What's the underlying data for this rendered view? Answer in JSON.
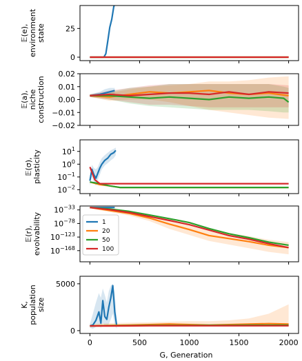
{
  "chart_data": {
    "type": "line",
    "layout": "5 vertically stacked panels sharing the x axis",
    "xlabel": "G, Generation",
    "x_ticks": [
      0,
      500,
      1000,
      1500,
      2000
    ],
    "xlim": [
      -100,
      2100
    ],
    "legend": {
      "placement": "inside panel 4, upper-left",
      "entries": [
        {
          "name": "1",
          "color": "#1f77b4"
        },
        {
          "name": "20",
          "color": "#ff7f0e"
        },
        {
          "name": "50",
          "color": "#2ca02c"
        },
        {
          "name": "100",
          "color": "#d62728"
        }
      ]
    },
    "panels": [
      {
        "id": "environment",
        "ylabel": [
          "𝔼(e),",
          "environment",
          "state"
        ],
        "yscale": "linear",
        "ylim": [
          -3,
          45
        ],
        "y_ticks": [
          {
            "v": 0,
            "label": "0"
          },
          {
            "v": 25,
            "label": "25"
          }
        ],
        "series": [
          {
            "name": "1",
            "color": "#1f77b4",
            "x": [
              0,
              50,
              100,
              140,
              160,
              180,
              200,
              220,
              240,
              260
            ],
            "y": [
              0,
              0,
              0,
              0,
              3,
              14,
              26,
              33,
              44,
              48
            ]
          },
          {
            "name": "20",
            "color": "#ff7f0e",
            "x": [
              0,
              2000
            ],
            "y": [
              0,
              0
            ]
          },
          {
            "name": "50",
            "color": "#2ca02c",
            "x": [
              0,
              2000
            ],
            "y": [
              0,
              0
            ]
          },
          {
            "name": "100",
            "color": "#d62728",
            "x": [
              0,
              2000
            ],
            "y": [
              0,
              0
            ]
          }
        ]
      },
      {
        "id": "niche",
        "ylabel": [
          "𝔼(a),",
          "niche",
          "construction"
        ],
        "yscale": "linear",
        "ylim": [
          -0.02,
          0.02
        ],
        "y_ticks": [
          {
            "v": 0.02,
            "label": "0.02"
          },
          {
            "v": 0.01,
            "label": "0.01"
          },
          {
            "v": 0.0,
            "label": "0.00"
          },
          {
            "v": -0.01,
            "label": "−0.01"
          },
          {
            "v": -0.02,
            "label": "−0.02"
          }
        ],
        "series": [
          {
            "name": "1",
            "color": "#1f77b4",
            "x": [
              0,
              100,
              150,
              200,
              250
            ],
            "y": [
              0.003,
              0.004,
              0.005,
              0.006,
              0.007
            ],
            "band_hi": [
              0.004,
              0.006,
              0.008,
              0.009,
              0.009
            ],
            "band_lo": [
              0.002,
              0.002,
              0.002,
              0.003,
              0.004
            ]
          },
          {
            "name": "20",
            "color": "#ff7f0e",
            "x": [
              0,
              200,
              400,
              600,
              800,
              1000,
              1200,
              1400,
              1600,
              1800,
              2000
            ],
            "y": [
              0.003,
              0.002,
              0.004,
              0.006,
              0.005,
              0.006,
              0.007,
              0.005,
              0.004,
              0.005,
              0.003
            ],
            "band_hi": [
              0.004,
              0.005,
              0.008,
              0.01,
              0.011,
              0.012,
              0.014,
              0.014,
              0.015,
              0.017,
              0.018
            ],
            "band_lo": [
              0.002,
              -0.001,
              0.0,
              0.0,
              -0.002,
              -0.005,
              -0.008,
              -0.01,
              -0.012,
              -0.014,
              -0.015
            ]
          },
          {
            "name": "50",
            "color": "#2ca02c",
            "x": [
              0,
              200,
              400,
              600,
              800,
              1000,
              1200,
              1400,
              1600,
              1800,
              1950,
              2000
            ],
            "y": [
              0.003,
              0.003,
              0.002,
              0.001,
              0.002,
              0.001,
              0.0,
              0.002,
              0.001,
              0.002,
              0.001,
              -0.002
            ],
            "band_hi": [
              0.004,
              0.006,
              0.009,
              0.01,
              0.012,
              0.012,
              0.012,
              0.012,
              0.012,
              0.012,
              0.01,
              0.009
            ],
            "band_lo": [
              0.002,
              0.0,
              -0.003,
              -0.005,
              -0.006,
              -0.007,
              -0.008,
              -0.008,
              -0.008,
              -0.009,
              -0.01,
              -0.01
            ]
          },
          {
            "name": "100",
            "color": "#d62728",
            "x": [
              0,
              200,
              400,
              600,
              800,
              1000,
              1200,
              1400,
              1600,
              1800,
              2000
            ],
            "y": [
              0.003,
              0.004,
              0.003,
              0.004,
              0.005,
              0.005,
              0.004,
              0.006,
              0.004,
              0.006,
              0.005
            ],
            "band_hi": [
              0.004,
              0.007,
              0.009,
              0.011,
              0.012,
              0.012,
              0.012,
              0.012,
              0.012,
              0.012,
              0.011
            ],
            "band_lo": [
              0.002,
              0.0,
              -0.002,
              -0.004,
              -0.004,
              -0.005,
              -0.006,
              -0.006,
              -0.006,
              -0.006,
              -0.006
            ]
          }
        ]
      },
      {
        "id": "plasticity",
        "ylabel": [
          "𝔼(σ),",
          "plasticity"
        ],
        "yscale": "log",
        "ylim": [
          0.005,
          80
        ],
        "y_ticks": [
          {
            "v": 10,
            "label": "10^1"
          },
          {
            "v": 1,
            "label": "10^0"
          },
          {
            "v": 0.1,
            "label": "10^-1"
          },
          {
            "v": 0.01,
            "label": "10^-2"
          }
        ],
        "series": [
          {
            "name": "1",
            "color": "#1f77b4",
            "x": [
              0,
              20,
              40,
              60,
              80,
              100,
              120,
              150,
              180,
              210,
              240,
              260
            ],
            "y": [
              0.05,
              0.4,
              0.15,
              0.08,
              0.2,
              0.5,
              1.0,
              2.0,
              3.0,
              6.0,
              8.0,
              12.0
            ],
            "band_hi": [
              0.1,
              0.9,
              0.5,
              0.4,
              0.6,
              1.5,
              3,
              5,
              8,
              12,
              16,
              20
            ],
            "band_lo": [
              0.02,
              0.1,
              0.04,
              0.02,
              0.06,
              0.15,
              0.4,
              0.8,
              1.2,
              2,
              3,
              5
            ]
          },
          {
            "name": "20",
            "color": "#ff7f0e",
            "x": [
              0,
              100,
              200,
              300,
              2000
            ],
            "y": [
              0.04,
              0.025,
              0.02,
              0.015,
              0.015
            ]
          },
          {
            "name": "50",
            "color": "#2ca02c",
            "x": [
              0,
              100,
              200,
              300,
              2000
            ],
            "y": [
              0.04,
              0.03,
              0.02,
              0.015,
              0.015
            ]
          },
          {
            "name": "100",
            "color": "#d62728",
            "x": [
              0,
              50,
              100,
              2000
            ],
            "y": [
              0.6,
              0.06,
              0.03,
              0.03
            ]
          }
        ]
      },
      {
        "id": "evolvability",
        "ylabel": [
          "𝔼(r),",
          "evolvability"
        ],
        "yscale": "log",
        "ylim": [
          1e-205,
          1e-20
        ],
        "y_ticks": [
          {
            "v": 1e-33,
            "label": "10^-33"
          },
          {
            "v": 1e-78,
            "label": "10^-78"
          },
          {
            "v": 1e-123,
            "label": "10^-123"
          },
          {
            "v": 1e-168,
            "label": "10^-168"
          }
        ],
        "series": [
          {
            "name": "1",
            "color": "#1f77b4",
            "x": [
              0,
              100,
              250
            ],
            "y": [
              1e-25,
              1e-25,
              1e-25
            ]
          },
          {
            "name": "20",
            "color": "#ff7f0e",
            "x": [
              0,
              200,
              400,
              600,
              800,
              1000,
              1200,
              1400,
              1600,
              1800,
              2000
            ],
            "y": [
              1e-25,
              1e-35,
              1e-45,
              1e-60,
              1e-80,
              1e-98,
              1e-118,
              1e-128,
              1e-138,
              1e-150,
              1e-158
            ],
            "band_hi": [
              1e-22,
              1e-30,
              1e-38,
              1e-50,
              1e-66,
              1e-82,
              1e-102,
              1e-110,
              1e-120,
              1e-132,
              1e-140
            ],
            "band_lo": [
              1e-28,
              1e-40,
              1e-52,
              1e-70,
              1e-96,
              1e-116,
              1e-136,
              1e-148,
              1e-160,
              1e-172,
              1e-180
            ]
          },
          {
            "name": "50",
            "color": "#2ca02c",
            "x": [
              0,
              200,
              400,
              600,
              800,
              1000,
              1200,
              1400,
              1600,
              1800,
              2000
            ],
            "y": [
              1e-25,
              1e-30,
              1e-38,
              1e-50,
              1e-62,
              1e-75,
              1e-95,
              1e-112,
              1e-125,
              1e-140,
              1e-150
            ]
          },
          {
            "name": "100",
            "color": "#d62728",
            "x": [
              0,
              200,
              400,
              600,
              800,
              1000,
              1200,
              1400,
              1600,
              1800,
              2000
            ],
            "y": [
              1e-25,
              1e-32,
              1e-42,
              1e-55,
              1e-68,
              1e-82,
              1e-100,
              1e-118,
              1e-130,
              1e-145,
              1e-158
            ]
          }
        ]
      },
      {
        "id": "population",
        "ylabel": [
          "K,",
          "population",
          "size"
        ],
        "yscale": "linear",
        "ylim": [
          -300,
          5800
        ],
        "y_ticks": [
          {
            "v": 5000,
            "label": "5000"
          },
          {
            "v": 0,
            "label": "0"
          }
        ],
        "series": [
          {
            "name": "1",
            "color": "#1f77b4",
            "x": [
              0,
              30,
              60,
              90,
              110,
              130,
              150,
              170,
              190,
              210,
              230,
              250,
              270
            ],
            "y": [
              500,
              600,
              1100,
              2000,
              800,
              3200,
              1500,
              1200,
              2500,
              3500,
              4800,
              2000,
              500
            ],
            "band_hi": [
              700,
              1800,
              3000,
              4000,
              3500,
              4500,
              3800,
              3000,
              4200,
              4800,
              5000,
              4000,
              1200
            ],
            "band_lo": [
              300,
              200,
              400,
              600,
              300,
              800,
              500,
              400,
              700,
              1200,
              1800,
              600,
              200
            ]
          },
          {
            "name": "20",
            "color": "#ff7f0e",
            "x": [
              0,
              200,
              400,
              600,
              800,
              1000,
              1200,
              1400,
              1600,
              1800,
              2000
            ],
            "y": [
              500,
              550,
              600,
              650,
              700,
              650,
              600,
              650,
              700,
              750,
              700
            ],
            "band_hi": [
              700,
              800,
              850,
              900,
              950,
              1000,
              1000,
              1100,
              1300,
              1800,
              2800
            ],
            "band_lo": [
              400,
              400,
              400,
              420,
              420,
              420,
              420,
              420,
              420,
              420,
              420
            ]
          },
          {
            "name": "50",
            "color": "#2ca02c",
            "x": [
              0,
              200,
              400,
              600,
              800,
              1000,
              1200,
              1400,
              1600,
              1800,
              2000
            ],
            "y": [
              500,
              520,
              540,
              560,
              560,
              560,
              570,
              570,
              580,
              580,
              580
            ]
          },
          {
            "name": "100",
            "color": "#d62728",
            "x": [
              0,
              200,
              400,
              600,
              800,
              1000,
              1200,
              1400,
              1600,
              1800,
              2000
            ],
            "y": [
              500,
              500,
              510,
              520,
              520,
              520,
              520,
              520,
              520,
              520,
              520
            ]
          }
        ]
      }
    ]
  }
}
